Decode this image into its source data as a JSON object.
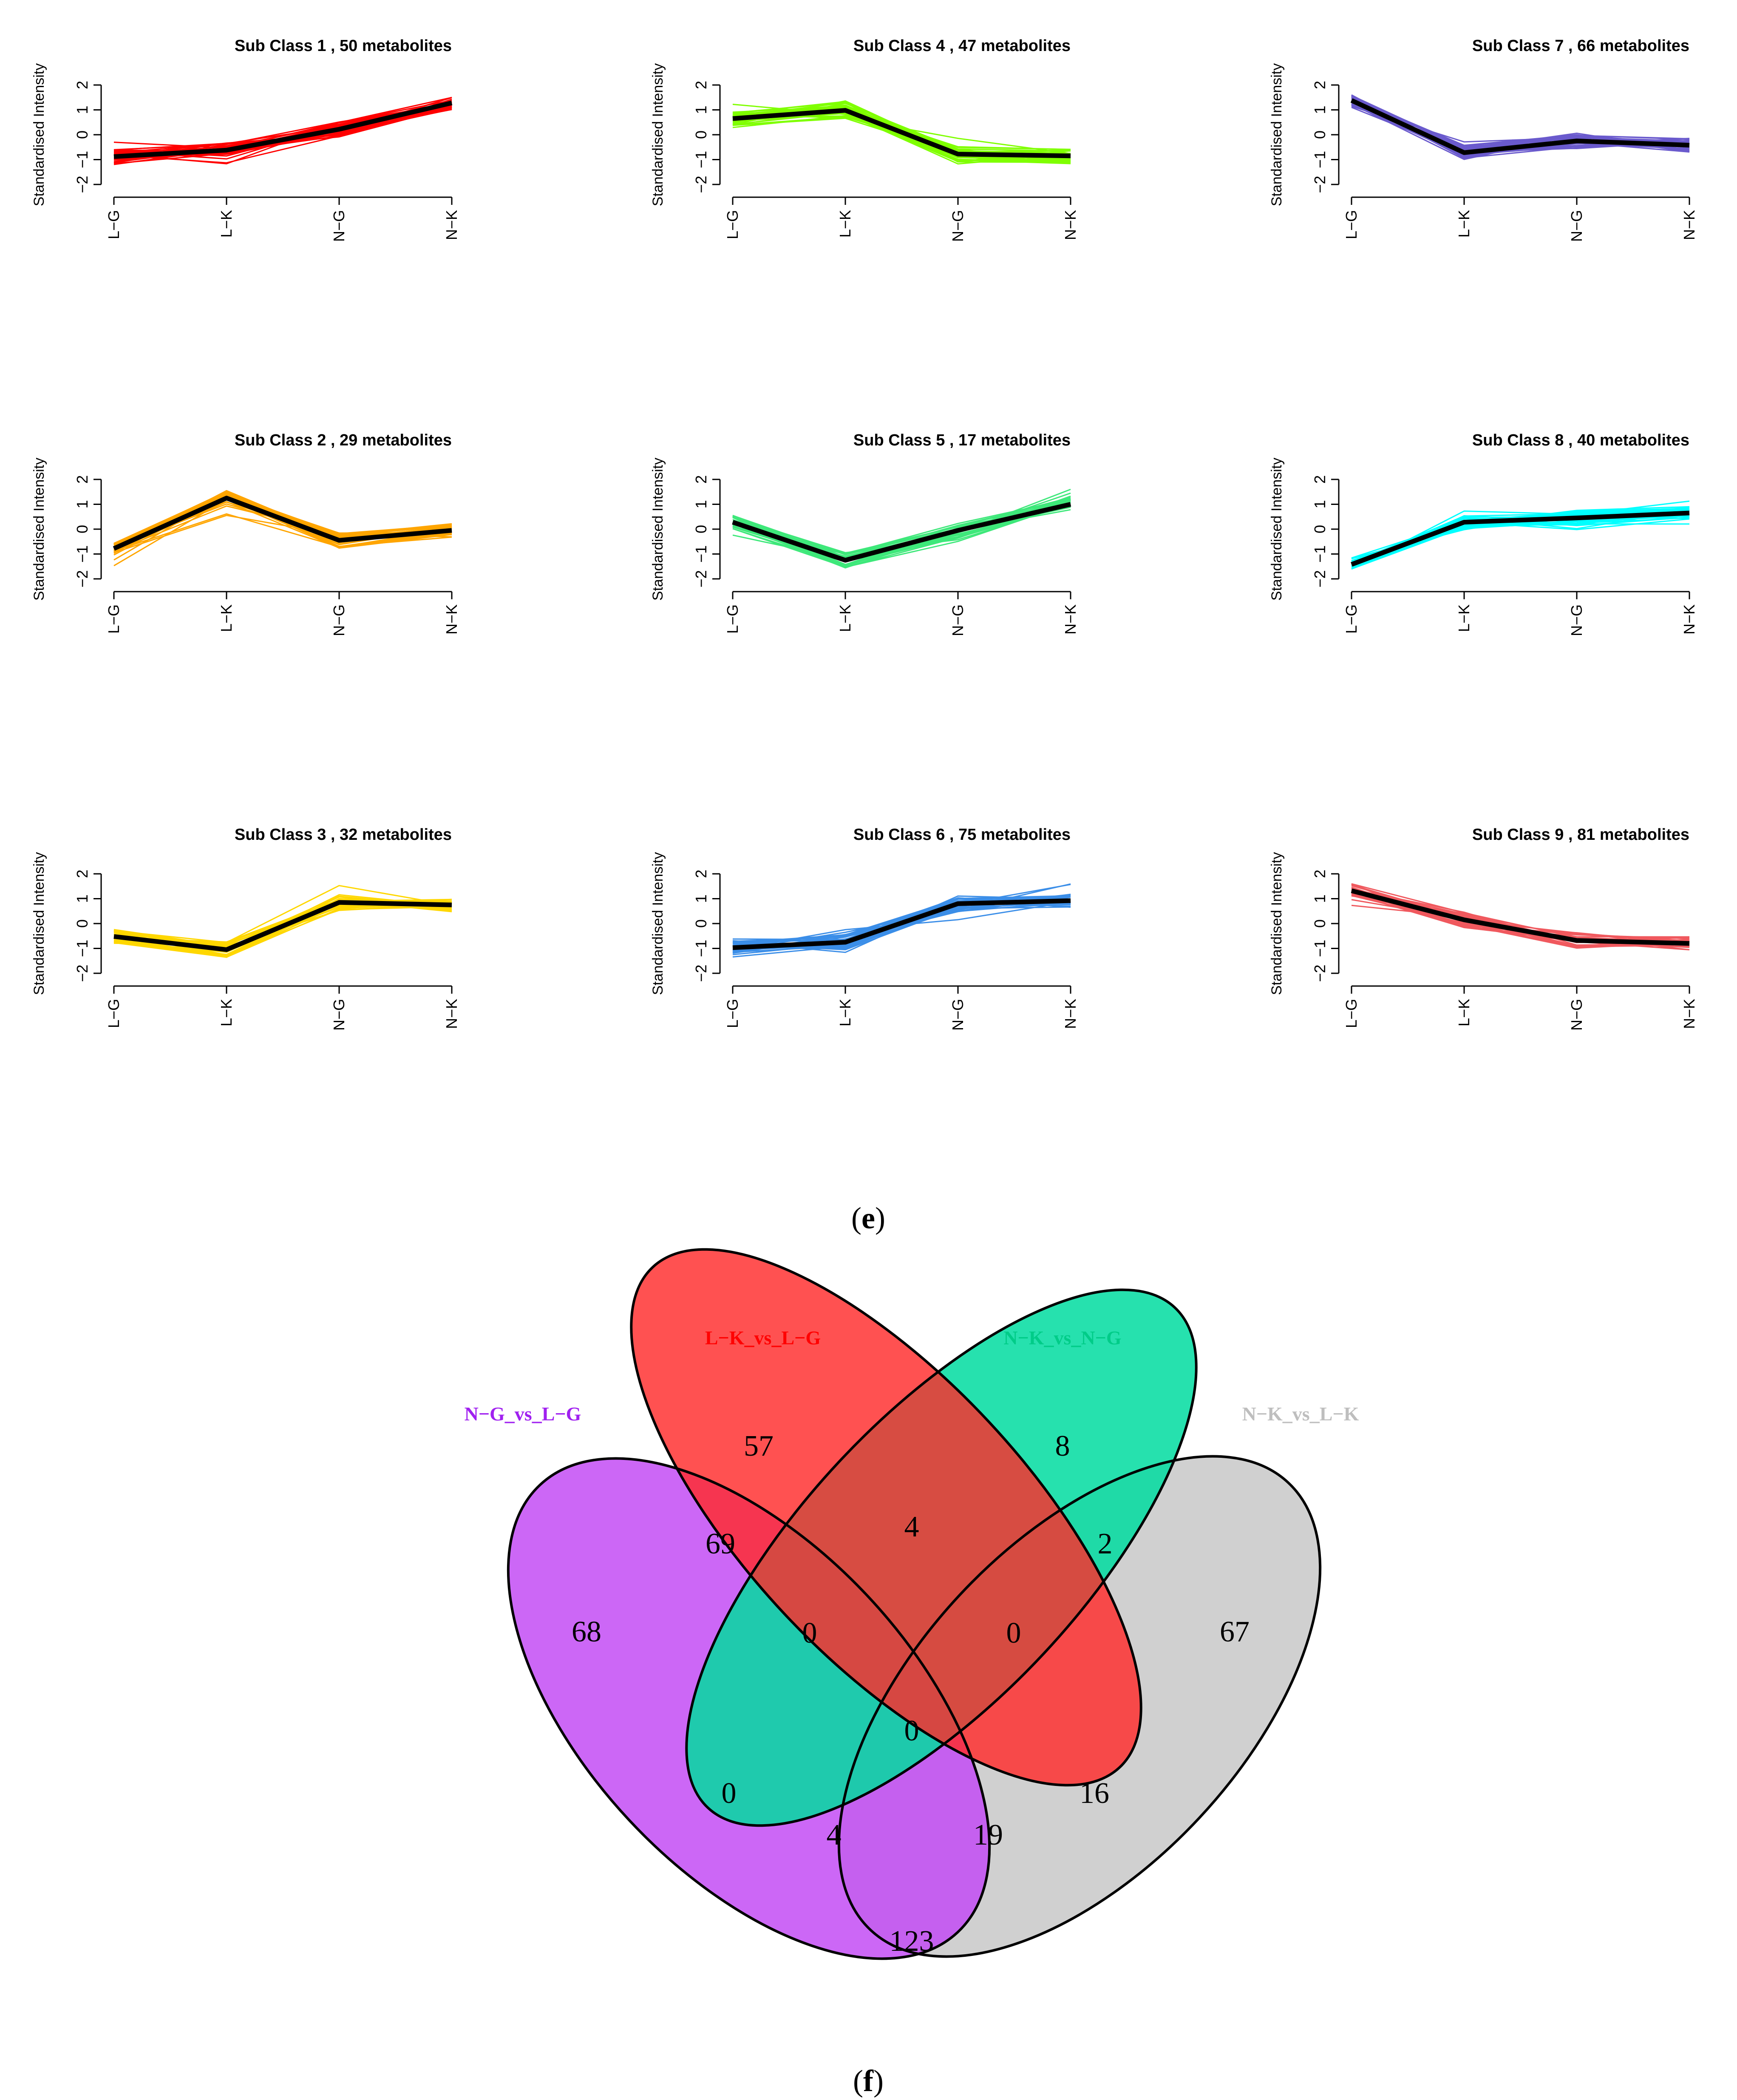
{
  "figure": {
    "caption_e": {
      "open": "(",
      "letter": "e",
      "close": ")"
    },
    "caption_f": {
      "open": "(",
      "letter": "f",
      "close": ")"
    }
  },
  "chart_data": [
    {
      "type": "line",
      "title": "Sub Class  1  , 50 metabolites",
      "ylabel": "Standardised Intensity",
      "categories": [
        "L−G",
        "L−K",
        "N−G",
        "N−K"
      ],
      "ylim": [
        -2,
        2
      ],
      "yticks": [
        "−2",
        "−1",
        "0",
        "1",
        "2"
      ],
      "color": "#ff0000",
      "mean": [
        -0.88,
        -0.62,
        0.22,
        1.28
      ]
    },
    {
      "type": "line",
      "title": "Sub Class  2  , 29 metabolites",
      "ylabel": "Standardised Intensity",
      "categories": [
        "L−G",
        "L−K",
        "N−G",
        "N−K"
      ],
      "ylim": [
        -2,
        2
      ],
      "yticks": [
        "−2",
        "−1",
        "0",
        "1",
        "2"
      ],
      "color": "#ffa500",
      "mean": [
        -0.78,
        1.25,
        -0.45,
        -0.05
      ]
    },
    {
      "type": "line",
      "title": "Sub Class  3  , 32 metabolites",
      "ylabel": "Standardised Intensity",
      "categories": [
        "L−G",
        "L−K",
        "N−G",
        "N−K"
      ],
      "ylim": [
        -2,
        2
      ],
      "yticks": [
        "−2",
        "−1",
        "0",
        "1",
        "2"
      ],
      "color": "#ffd700",
      "mean": [
        -0.52,
        -1.05,
        0.85,
        0.75
      ]
    },
    {
      "type": "line",
      "title": "Sub Class  4  , 47 metabolites",
      "ylabel": "Standardised Intensity",
      "categories": [
        "L−G",
        "L−K",
        "N−G",
        "N−K"
      ],
      "ylim": [
        -2,
        2
      ],
      "yticks": [
        "−2",
        "−1",
        "0",
        "1",
        "2"
      ],
      "color": "#7fff00",
      "mean": [
        0.65,
        0.98,
        -0.78,
        -0.85
      ]
    },
    {
      "type": "line",
      "title": "Sub Class  5  , 17 metabolites",
      "ylabel": "Standardised Intensity",
      "categories": [
        "L−G",
        "L−K",
        "N−G",
        "N−K"
      ],
      "ylim": [
        -2,
        2
      ],
      "yticks": [
        "−2",
        "−1",
        "0",
        "1",
        "2"
      ],
      "color": "#3ee87a",
      "mean": [
        0.28,
        -1.25,
        -0.05,
        1.0
      ]
    },
    {
      "type": "line",
      "title": "Sub Class  6  , 75 metabolites",
      "ylabel": "Standardised Intensity",
      "categories": [
        "L−G",
        "L−K",
        "N−G",
        "N−K"
      ],
      "ylim": [
        -2,
        2
      ],
      "yticks": [
        "−2",
        "−1",
        "0",
        "1",
        "2"
      ],
      "color": "#3b8ee8",
      "mean": [
        -0.97,
        -0.75,
        0.8,
        0.92
      ]
    },
    {
      "type": "line",
      "title": "Sub Class  7  , 66 metabolites",
      "ylabel": "Standardised Intensity",
      "categories": [
        "L−G",
        "L−K",
        "N−G",
        "N−K"
      ],
      "ylim": [
        -2,
        2
      ],
      "yticks": [
        "−2",
        "−1",
        "0",
        "1",
        "2"
      ],
      "color": "#6a5acd",
      "mean": [
        1.38,
        -0.72,
        -0.25,
        -0.42
      ]
    },
    {
      "type": "line",
      "title": "Sub Class  8  , 40 metabolites",
      "ylabel": "Standardised Intensity",
      "categories": [
        "L−G",
        "L−K",
        "N−G",
        "N−K"
      ],
      "ylim": [
        -2,
        2
      ],
      "yticks": [
        "−2",
        "−1",
        "0",
        "1",
        "2"
      ],
      "color": "#00ffff",
      "mean": [
        -1.42,
        0.28,
        0.45,
        0.65
      ]
    },
    {
      "type": "line",
      "title": "Sub Class  9  , 81 metabolites",
      "ylabel": "Standardised Intensity",
      "categories": [
        "L−G",
        "L−K",
        "N−G",
        "N−K"
      ],
      "ylim": [
        -2,
        2
      ],
      "yticks": [
        "−2",
        "−1",
        "0",
        "1",
        "2"
      ],
      "color": "#f0595e",
      "mean": [
        1.32,
        0.15,
        -0.68,
        -0.8
      ]
    },
    {
      "type": "venn",
      "sets": [
        {
          "name": "N−G_vs_L−G",
          "color": "#a020f0",
          "fill": "#c34cf4"
        },
        {
          "name": "L−K_vs_L−G",
          "color": "#ff0000",
          "fill": "#ff2b2b"
        },
        {
          "name": "N−K_vs_N−G",
          "color": "#00cc88",
          "fill": "#00dca0"
        },
        {
          "name": "N−K_vs_L−K",
          "color": "#bebebe",
          "fill": "#c8c8c8"
        }
      ],
      "regions": {
        "A": "68",
        "B": "57",
        "C": "8",
        "D": "67",
        "AB": "69",
        "BC": "4",
        "CD": "2",
        "ABC": "0",
        "BCD": "0",
        "ABCD": "0",
        "AC": "0",
        "BD": "16",
        "ACD": "4",
        "ABD": "19",
        "AD": "123"
      }
    }
  ]
}
